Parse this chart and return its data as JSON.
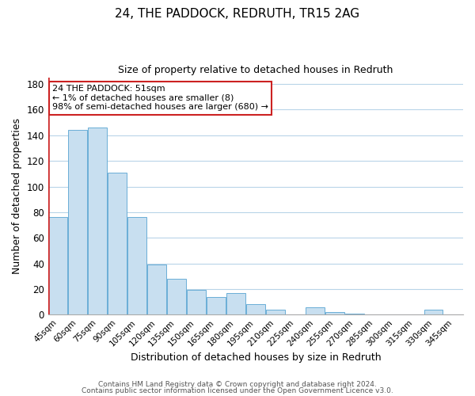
{
  "title": "24, THE PADDOCK, REDRUTH, TR15 2AG",
  "subtitle": "Size of property relative to detached houses in Redruth",
  "xlabel": "Distribution of detached houses by size in Redruth",
  "ylabel": "Number of detached properties",
  "bar_labels": [
    "45sqm",
    "60sqm",
    "75sqm",
    "90sqm",
    "105sqm",
    "120sqm",
    "135sqm",
    "150sqm",
    "165sqm",
    "180sqm",
    "195sqm",
    "210sqm",
    "225sqm",
    "240sqm",
    "255sqm",
    "270sqm",
    "285sqm",
    "300sqm",
    "315sqm",
    "330sqm",
    "345sqm"
  ],
  "bar_values": [
    76,
    144,
    146,
    111,
    76,
    39,
    28,
    19,
    14,
    17,
    8,
    4,
    0,
    6,
    2,
    1,
    0,
    0,
    0,
    4,
    0
  ],
  "bar_color": "#c8dff0",
  "bar_edge_color": "#6aaed6",
  "highlight_edge_color": "#cc2222",
  "annotation_title": "24 THE PADDOCK: 51sqm",
  "annotation_line1": "← 1% of detached houses are smaller (8)",
  "annotation_line2": "98% of semi-detached houses are larger (680) →",
  "annotation_box_edge": "#cc2222",
  "ylim": [
    0,
    185
  ],
  "yticks": [
    0,
    20,
    40,
    60,
    80,
    100,
    120,
    140,
    160,
    180
  ],
  "footer1": "Contains HM Land Registry data © Crown copyright and database right 2024.",
  "footer2": "Contains public sector information licensed under the Open Government Licence v3.0.",
  "bg_color": "#ffffff",
  "grid_color": "#b8d4e8",
  "fig_width": 6.0,
  "fig_height": 5.0,
  "dpi": 100
}
